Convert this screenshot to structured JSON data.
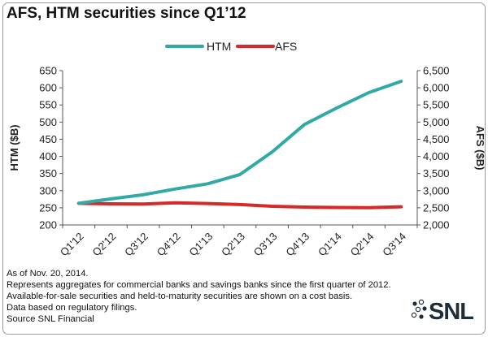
{
  "title": "AFS, HTM securities since Q1’12",
  "chart_data": {
    "type": "line",
    "categories": [
      "Q1'12",
      "Q2'12",
      "Q3'12",
      "Q4'12",
      "Q1'13",
      "Q2'13",
      "Q3'13",
      "Q4'13",
      "Q1'14",
      "Q2'14",
      "Q3'14"
    ],
    "series": [
      {
        "name": "HTM",
        "axis": "left",
        "color": "#33a9a6",
        "values": [
          263,
          276,
          288,
          305,
          320,
          347,
          413,
          493,
          541,
          586,
          619
        ]
      },
      {
        "name": "AFS",
        "axis": "right",
        "color": "#d42a2a",
        "values": [
          2630,
          2615,
          2610,
          2645,
          2625,
          2595,
          2545,
          2520,
          2510,
          2505,
          2530
        ]
      }
    ],
    "ylabel": "HTM ($B)",
    "y2label": "AFS ($B)",
    "ylim": [
      200,
      650
    ],
    "y2lim": [
      2000,
      6500
    ],
    "yticks": [
      "200",
      "250",
      "300",
      "350",
      "400",
      "450",
      "500",
      "550",
      "600",
      "650"
    ],
    "y2ticks": [
      "2,000",
      "2,500",
      "3,000",
      "3,500",
      "4,000",
      "4,500",
      "5,000",
      "5,500",
      "6,000",
      "6,500"
    ],
    "legend": "top-center",
    "grid": false
  },
  "notes": [
    "As of Nov. 20, 2014.",
    "Represents aggregates for commercial banks and savings banks since the first quarter of 2012.",
    "Available-for-sale securities and held-to-maturity securities are shown on a cost basis.",
    "Data based on regulatory filings.",
    "Source SNL Financial"
  ],
  "logo": {
    "text": "SNL",
    "color": "#1f2d3a"
  }
}
